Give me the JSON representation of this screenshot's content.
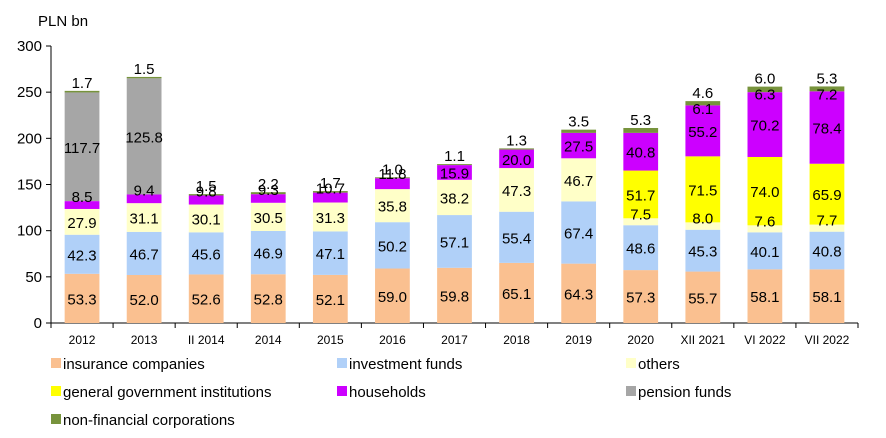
{
  "chart_data": {
    "type": "bar",
    "stacked": true,
    "unit_label": "PLN bn",
    "ylim": [
      0,
      300
    ],
    "yticks": [
      0,
      50,
      100,
      150,
      200,
      250,
      300
    ],
    "grid": false,
    "legend_position": "bottom",
    "categories": [
      "2012",
      "2013",
      "II 2014",
      "2014",
      "2015",
      "2016",
      "2017",
      "2018",
      "2019",
      "2020",
      "XII 2021",
      "VI 2022",
      "VII 2022"
    ],
    "series": [
      {
        "name": "insurance companies",
        "color": "#fac090",
        "values": [
          53.3,
          52.0,
          52.6,
          52.8,
          52.1,
          59.0,
          59.8,
          65.1,
          64.3,
          57.3,
          55.7,
          58.1,
          58.1
        ]
      },
      {
        "name": "investment funds",
        "color": "#b0d0f8",
        "values": [
          42.3,
          46.7,
          45.6,
          46.9,
          47.1,
          50.2,
          57.1,
          55.4,
          67.4,
          48.6,
          45.3,
          40.1,
          40.8
        ]
      },
      {
        "name": "others",
        "color": "#ffffc8",
        "values": [
          27.9,
          31.1,
          30.1,
          30.5,
          31.3,
          35.8,
          38.2,
          47.3,
          46.7,
          7.5,
          8.0,
          7.6,
          7.7
        ]
      },
      {
        "name": "general government institutions",
        "color": "#ffff00",
        "values": [
          0,
          0,
          0,
          0,
          0,
          0,
          0,
          0,
          0,
          51.7,
          71.5,
          74.0,
          65.9
        ]
      },
      {
        "name": "households",
        "color": "#cc00ff",
        "values": [
          8.5,
          9.4,
          9.8,
          9.3,
          10.7,
          11.8,
          15.9,
          20.0,
          27.5,
          40.8,
          55.2,
          70.2,
          78.4
        ]
      },
      {
        "name": "pension funds",
        "color": "#a6a6a6",
        "values": [
          117.7,
          125.8,
          0,
          0,
          0,
          0,
          0,
          0,
          0,
          0,
          0,
          0,
          0
        ]
      },
      {
        "name": "non-financial corporations",
        "color": "#77933c",
        "values": [
          1.7,
          1.5,
          1.5,
          2.2,
          1.7,
          1.0,
          1.1,
          1.3,
          3.5,
          5.3,
          4.6,
          6.0,
          5.3
        ]
      }
    ],
    "extra_labels": [
      {
        "category": "XII 2021",
        "value": 6.1
      },
      {
        "category": "VI 2022",
        "value": 6.3
      },
      {
        "category": "VII 2022",
        "value": 7.2
      }
    ]
  }
}
